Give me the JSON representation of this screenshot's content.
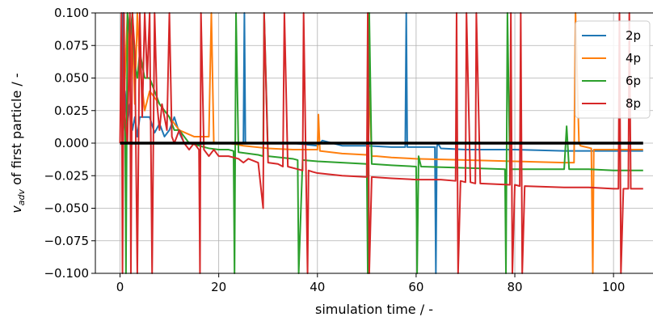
{
  "chart_data": {
    "type": "line",
    "xlabel": "simulation time / -",
    "ylabel_main": "v",
    "ylabel_sub": "adv",
    "ylabel_rest": " of first particle / -",
    "xlim": [
      -5,
      108
    ],
    "ylim": [
      -0.1,
      0.1
    ],
    "grid": true,
    "legend_position": "top-right",
    "x_ticks": [
      0,
      20,
      40,
      60,
      80,
      100
    ],
    "x_tick_labels": [
      "0",
      "20",
      "40",
      "60",
      "80",
      "100"
    ],
    "y_ticks": [
      0.1,
      0.075,
      0.05,
      0.025,
      0.0,
      -0.025,
      -0.05,
      -0.075,
      -0.1
    ],
    "y_tick_labels": [
      "0.100",
      "0.075",
      "0.050",
      "0.025",
      "0.000",
      "−0.025",
      "−0.050",
      "−0.075",
      "−0.100"
    ],
    "reference_line": {
      "y": 0.0,
      "x": [
        0,
        106
      ],
      "color": "#000000"
    },
    "series": [
      {
        "name": "2p",
        "color": "#1f77b4",
        "x": [
          0,
          0.5,
          0.6,
          0.7,
          1.0,
          1.5,
          2.0,
          2.5,
          3.0,
          3.5,
          4.0,
          5.0,
          6.0,
          7.0,
          8.0,
          9.0,
          10.0,
          11.0,
          12.0,
          13.0,
          14.0,
          16.0,
          18.0,
          20.0,
          22.0,
          24.0,
          25.0,
          25.2,
          25.4,
          26.0,
          30.0,
          35.0,
          40.0,
          41.0,
          45.0,
          50.0,
          55.0,
          57.8,
          58.0,
          58.2,
          59.0,
          60.0,
          63.8,
          64.0,
          64.2,
          64.4,
          65.0,
          70.0,
          80.0,
          90.0,
          100.0,
          106.0
        ],
        "y": [
          0.0,
          0.0,
          0.1,
          0.02,
          0.04,
          0.015,
          0.03,
          0.01,
          0.02,
          0.005,
          0.02,
          0.02,
          0.02,
          0.008,
          0.015,
          0.005,
          0.01,
          0.02,
          0.008,
          0.0,
          0.0,
          -0.001,
          0.0,
          0.0,
          0.0,
          0.0,
          0.0,
          0.1,
          0.0,
          0.0,
          0.0,
          0.0,
          -0.002,
          0.002,
          -0.002,
          -0.002,
          -0.003,
          -0.003,
          0.1,
          -0.003,
          -0.003,
          -0.003,
          -0.003,
          -0.1,
          -0.003,
          0.0,
          -0.004,
          -0.005,
          -0.005,
          -0.006,
          -0.006,
          -0.006
        ]
      },
      {
        "name": "4p",
        "color": "#ff7f0e",
        "x": [
          0,
          0.5,
          1.5,
          2.0,
          2.5,
          3.0,
          3.5,
          4.0,
          5.0,
          6.0,
          7.0,
          8.0,
          10.0,
          12.0,
          15.0,
          18.0,
          18.5,
          19.0,
          20.0,
          22.0,
          25.0,
          30.0,
          35.0,
          40.0,
          40.2,
          40.5,
          45.0,
          50.0,
          50.5,
          51.0,
          52.0,
          55.0,
          60.0,
          70.0,
          80.0,
          90.0,
          92.0,
          92.3,
          93.0,
          93.3,
          95.5,
          95.8,
          96.0,
          100.0,
          106.0
        ],
        "y": [
          0.0,
          0.0,
          0.1,
          0.04,
          0.1,
          0.03,
          0.1,
          0.06,
          0.025,
          0.04,
          0.035,
          0.03,
          0.02,
          0.01,
          0.005,
          0.005,
          0.1,
          0.0,
          0.0,
          0.0,
          -0.002,
          -0.004,
          -0.005,
          -0.005,
          0.022,
          -0.006,
          -0.008,
          -0.009,
          0.04,
          -0.01,
          -0.01,
          -0.011,
          -0.012,
          -0.013,
          -0.014,
          -0.015,
          -0.015,
          0.1,
          0.0,
          -0.002,
          -0.004,
          -0.1,
          -0.005,
          -0.005,
          -0.005
        ]
      },
      {
        "name": "6p",
        "color": "#2ca02c",
        "x": [
          0,
          0.5,
          1.0,
          1.2,
          1.5,
          2.0,
          2.5,
          3.0,
          3.5,
          4.0,
          5.0,
          6.0,
          7.0,
          8.0,
          9.0,
          10.0,
          11.0,
          12.0,
          14.0,
          16.0,
          18.0,
          20.0,
          22.0,
          23.0,
          23.2,
          23.5,
          24.0,
          26.0,
          28.0,
          29.0,
          29.2,
          30.0,
          35.0,
          36.0,
          36.2,
          37.0,
          40.0,
          45.0,
          50.0,
          50.2,
          50.5,
          51.0,
          55.0,
          60.0,
          60.2,
          60.5,
          61.0,
          70.0,
          78.0,
          78.2,
          78.5,
          79.0,
          85.0,
          90.0,
          90.5,
          91.0,
          95.0,
          100.0,
          106.0
        ],
        "y": [
          0.0,
          0.0,
          0.03,
          -0.1,
          0.1,
          0.08,
          0.1,
          0.06,
          0.05,
          0.07,
          0.05,
          0.05,
          0.04,
          0.03,
          0.025,
          0.02,
          0.01,
          0.01,
          0.0,
          -0.002,
          -0.004,
          -0.005,
          -0.005,
          -0.006,
          -0.1,
          0.1,
          -0.007,
          -0.008,
          -0.009,
          -0.01,
          0.1,
          -0.01,
          -0.012,
          -0.013,
          -0.1,
          -0.013,
          -0.014,
          -0.015,
          -0.016,
          -0.1,
          0.1,
          -0.016,
          -0.017,
          -0.018,
          -0.1,
          -0.01,
          -0.018,
          -0.019,
          -0.02,
          -0.1,
          0.1,
          -0.02,
          -0.02,
          -0.02,
          0.013,
          -0.02,
          -0.02,
          -0.021,
          -0.021
        ]
      },
      {
        "name": "8p",
        "color": "#d62728",
        "x": [
          0,
          0.3,
          0.5,
          0.8,
          1.0,
          1.5,
          2.0,
          2.2,
          2.5,
          3.0,
          3.5,
          4.0,
          4.5,
          5.0,
          5.5,
          6.0,
          6.5,
          7.0,
          7.5,
          8.0,
          8.5,
          9.0,
          9.5,
          10.0,
          10.5,
          11.0,
          12.0,
          13.0,
          14.0,
          15.0,
          16.0,
          16.2,
          16.4,
          17.0,
          18.0,
          19.0,
          20.0,
          22.0,
          24.0,
          25.0,
          26.0,
          28.0,
          29.0,
          29.2,
          30.0,
          32.0,
          33.0,
          33.3,
          34.0,
          36.0,
          37.0,
          37.2,
          38.0,
          38.2,
          39.0,
          40.0,
          45.0,
          50.0,
          50.2,
          50.5,
          51.0,
          55.0,
          60.0,
          65.0,
          68.0,
          68.2,
          68.5,
          69.0,
          70.0,
          70.2,
          71.0,
          72.0,
          72.2,
          73.0,
          79.0,
          79.2,
          79.5,
          80.0,
          81.0,
          81.2,
          81.5,
          82.0,
          90.0,
          95.0,
          100.0,
          101.0,
          101.2,
          101.5,
          102.0,
          103.0,
          103.2,
          103.5,
          104.0,
          106.0
        ],
        "y": [
          0.0,
          0.1,
          -0.1,
          0.1,
          0.02,
          0.0,
          0.1,
          -0.1,
          0.1,
          0.07,
          -0.1,
          0.1,
          0.02,
          0.1,
          0.05,
          0.1,
          -0.1,
          0.1,
          0.03,
          0.01,
          0.03,
          0.02,
          0.01,
          0.1,
          0.005,
          0.0,
          0.01,
          0.0,
          -0.005,
          0.0,
          -0.005,
          -0.1,
          0.1,
          -0.005,
          -0.01,
          -0.005,
          -0.01,
          -0.01,
          -0.012,
          -0.015,
          -0.012,
          -0.015,
          -0.05,
          0.1,
          -0.015,
          -0.016,
          -0.018,
          0.1,
          -0.018,
          -0.02,
          -0.021,
          0.1,
          -0.1,
          -0.021,
          -0.022,
          -0.023,
          -0.025,
          -0.026,
          0.1,
          -0.1,
          -0.026,
          -0.027,
          -0.028,
          -0.028,
          -0.029,
          0.1,
          -0.1,
          -0.029,
          -0.03,
          0.1,
          -0.03,
          -0.031,
          0.1,
          -0.031,
          -0.032,
          0.1,
          -0.1,
          -0.032,
          -0.033,
          0.1,
          -0.1,
          -0.033,
          -0.034,
          -0.034,
          -0.035,
          -0.035,
          0.1,
          -0.1,
          -0.035,
          -0.035,
          0.1,
          -0.035,
          -0.035,
          -0.035
        ]
      }
    ]
  }
}
